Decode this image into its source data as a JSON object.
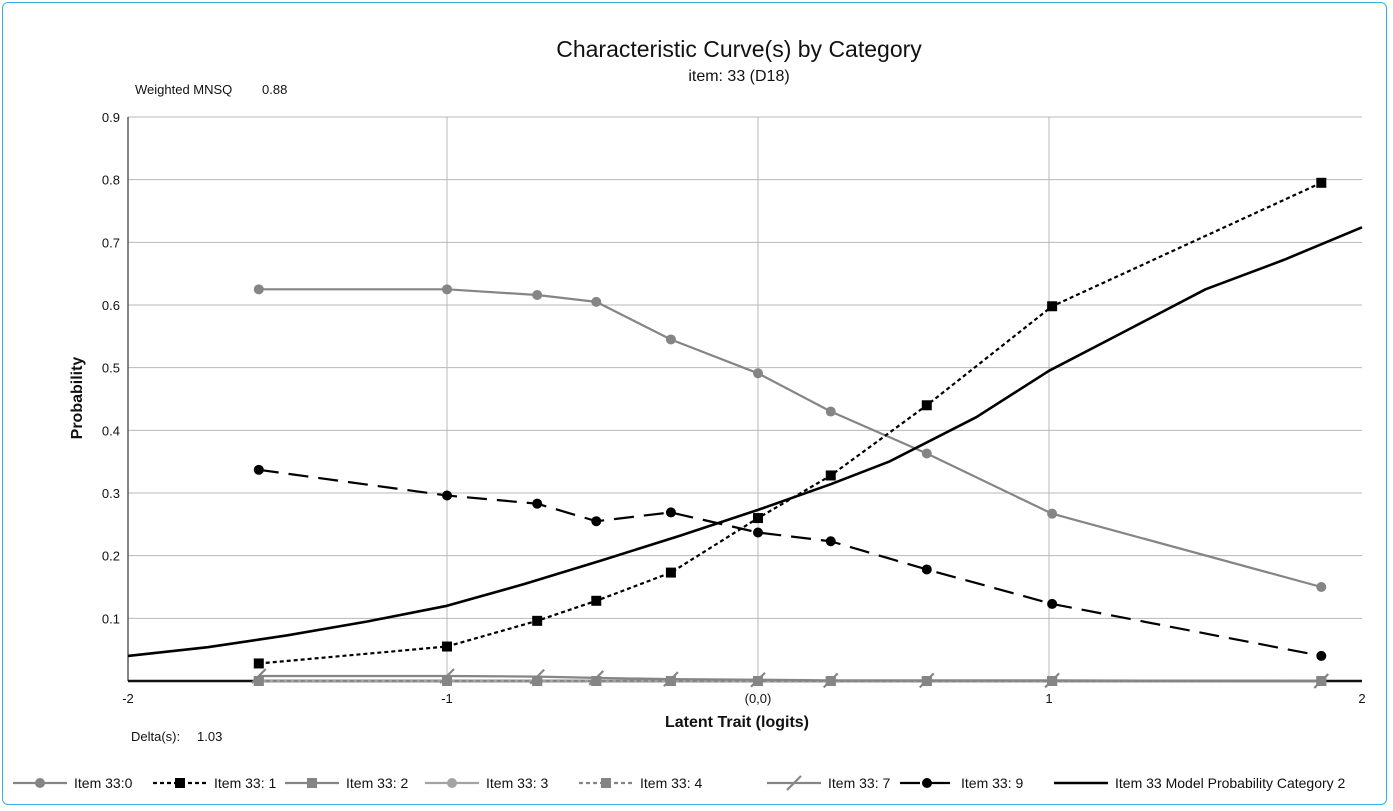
{
  "chart_data": {
    "type": "line",
    "title": "Characteristic Curve(s) by Category",
    "subtitle": "item: 33 (D18)",
    "xlabel": "Latent Trait (logits)",
    "ylabel": "Probability",
    "xlim": [
      -2,
      2
    ],
    "ylim": [
      0,
      0.9
    ],
    "x_ticks": [
      {
        "value": -2,
        "label": "-2"
      },
      {
        "value": -1,
        "label": "-1"
      },
      {
        "value": 0,
        "label": "(0,0)"
      },
      {
        "value": 1,
        "label": "1"
      },
      {
        "value": 2,
        "label": "2"
      }
    ],
    "y_ticks": [
      {
        "value": 0.1,
        "label": "0.1"
      },
      {
        "value": 0.2,
        "label": "0.2"
      },
      {
        "value": 0.3,
        "label": "0.3"
      },
      {
        "value": 0.4,
        "label": "0.4"
      },
      {
        "value": 0.5,
        "label": "0.5"
      },
      {
        "value": 0.6,
        "label": "0.6"
      },
      {
        "value": 0.7,
        "label": "0.7"
      },
      {
        "value": 0.8,
        "label": "0.8"
      },
      {
        "value": 0.9,
        "label": "0.9"
      }
    ],
    "grid": true,
    "legend_position": "bottom",
    "annotations": {
      "weighted_mnsq_label": "Weighted MNSQ",
      "weighted_mnsq_value": "0.88",
      "delta_label": "Delta(s):",
      "delta_value": "1.03"
    },
    "series": [
      {
        "name": "Item 33:0",
        "color": "#858585",
        "dash": "solid",
        "marker": "circle",
        "points": [
          [
            -1.59,
            0.625
          ],
          [
            -1.0,
            0.625
          ],
          [
            -0.71,
            0.616
          ],
          [
            -0.52,
            0.605
          ],
          [
            -0.28,
            0.545
          ],
          [
            0.0,
            0.491
          ],
          [
            0.25,
            0.43
          ],
          [
            0.58,
            0.363
          ],
          [
            1.01,
            0.267
          ],
          [
            1.87,
            0.15
          ]
        ]
      },
      {
        "name": "Item 33: 1",
        "color": "#000000",
        "dash": "dotted",
        "marker": "square",
        "points": [
          [
            -1.59,
            0.028
          ],
          [
            -1.0,
            0.055
          ],
          [
            -0.71,
            0.096
          ],
          [
            -0.52,
            0.128
          ],
          [
            -0.28,
            0.173
          ],
          [
            0.0,
            0.26
          ],
          [
            0.25,
            0.328
          ],
          [
            0.58,
            0.44
          ],
          [
            1.01,
            0.598
          ],
          [
            1.87,
            0.795
          ]
        ]
      },
      {
        "name": "Item 33: 2",
        "color": "#858585",
        "dash": "solid",
        "marker": "square",
        "points": [
          [
            -1.59,
            0.0
          ],
          [
            -1.0,
            0.0
          ],
          [
            -0.71,
            0.0
          ],
          [
            -0.52,
            0.0
          ],
          [
            -0.28,
            0.0
          ],
          [
            0.0,
            0.0
          ],
          [
            0.25,
            0.0
          ],
          [
            0.58,
            0.0
          ],
          [
            1.01,
            0.0
          ],
          [
            1.87,
            0.0
          ]
        ]
      },
      {
        "name": "Item 33: 3",
        "color": "#a3a3a3",
        "dash": "solid",
        "marker": "circle",
        "points": [
          [
            -1.59,
            0.0
          ],
          [
            -1.0,
            0.0
          ],
          [
            -0.71,
            0.0
          ],
          [
            -0.52,
            0.0
          ],
          [
            -0.28,
            0.0
          ],
          [
            0.0,
            0.0
          ],
          [
            0.25,
            0.0
          ],
          [
            0.58,
            0.0
          ],
          [
            1.01,
            0.0
          ],
          [
            1.87,
            0.0
          ]
        ]
      },
      {
        "name": "Item 33: 4",
        "color": "#858585",
        "dash": "dotted",
        "marker": "square",
        "points": [
          [
            -1.59,
            0.0
          ],
          [
            -1.0,
            0.0
          ],
          [
            -0.71,
            0.0
          ],
          [
            -0.52,
            0.0
          ],
          [
            -0.28,
            0.0
          ],
          [
            0.0,
            0.0
          ],
          [
            0.25,
            0.0
          ],
          [
            0.58,
            0.0
          ],
          [
            1.01,
            0.0
          ],
          [
            1.87,
            0.0
          ]
        ]
      },
      {
        "name": "Item 33: 7",
        "color": "#858585",
        "dash": "solid",
        "marker": "slash",
        "points": [
          [
            -1.59,
            0.008
          ],
          [
            -1.0,
            0.008
          ],
          [
            -0.71,
            0.007
          ],
          [
            -0.52,
            0.005
          ],
          [
            -0.28,
            0.003
          ],
          [
            0.0,
            0.002
          ],
          [
            0.25,
            0.001
          ],
          [
            0.58,
            0.001
          ],
          [
            1.01,
            0.001
          ],
          [
            1.87,
            0.0
          ]
        ]
      },
      {
        "name": "Item 33: 9",
        "color": "#000000",
        "dash": "dashed",
        "marker": "circle",
        "points": [
          [
            -1.59,
            0.337
          ],
          [
            -1.0,
            0.296
          ],
          [
            -0.71,
            0.283
          ],
          [
            -0.52,
            0.255
          ],
          [
            -0.28,
            0.269
          ],
          [
            0.0,
            0.237
          ],
          [
            0.25,
            0.223
          ],
          [
            0.58,
            0.178
          ],
          [
            1.01,
            0.123
          ],
          [
            1.87,
            0.04
          ]
        ]
      },
      {
        "name": "Item 33 Model Probability Category 2",
        "color": "#000000",
        "dash": "solid",
        "marker": "none",
        "width": 2.6,
        "points": [
          [
            -2.0,
            0.04
          ],
          [
            -1.75,
            0.054
          ],
          [
            -1.5,
            0.073
          ],
          [
            -1.25,
            0.095
          ],
          [
            -1.0,
            0.12
          ],
          [
            -0.75,
            0.155
          ],
          [
            -0.5,
            0.193
          ],
          [
            -0.25,
            0.232
          ],
          [
            0.0,
            0.273
          ],
          [
            0.25,
            0.314
          ],
          [
            0.45,
            0.35
          ],
          [
            0.75,
            0.421
          ],
          [
            1.0,
            0.495
          ],
          [
            1.25,
            0.56
          ],
          [
            1.5,
            0.625
          ],
          [
            1.75,
            0.672
          ],
          [
            2.0,
            0.724
          ]
        ]
      }
    ]
  }
}
